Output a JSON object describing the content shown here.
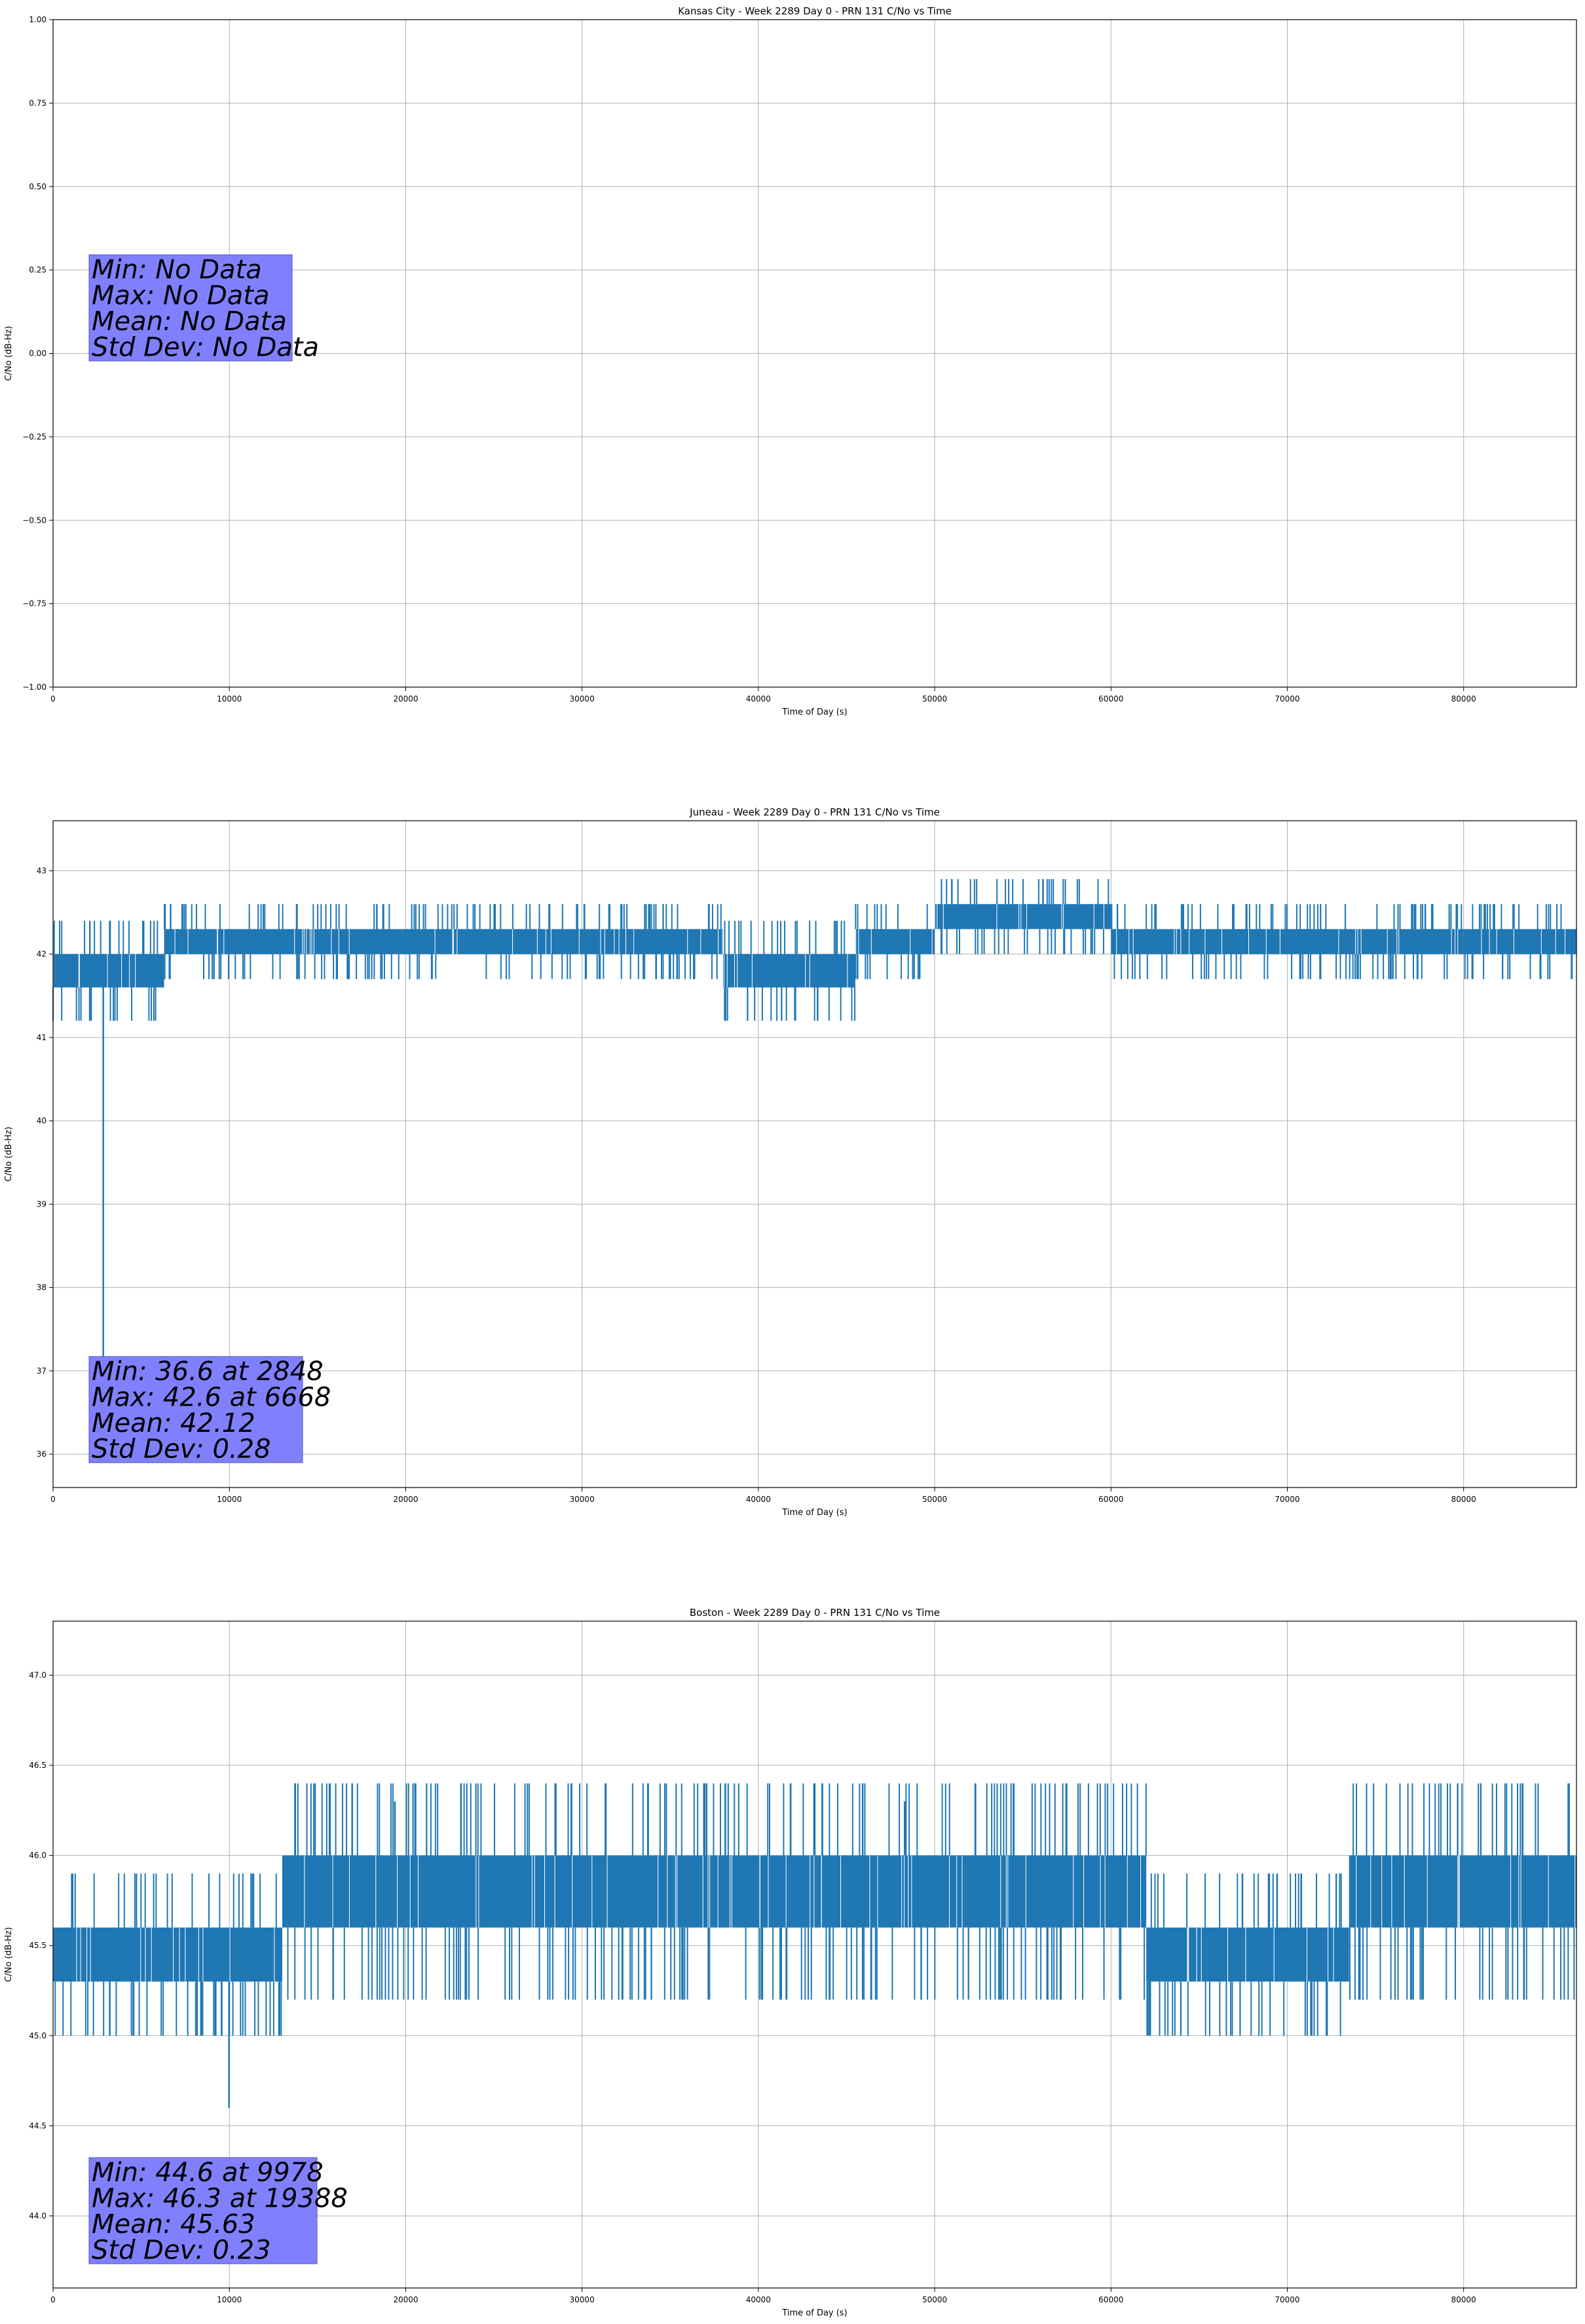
{
  "figure": {
    "accent_color": "#1f77b4",
    "stats_box_color": "#8080ff"
  },
  "chart_data": [
    {
      "type": "line",
      "title": "Kansas City - Week 2289 Day 0 - PRN 131 C/No vs Time",
      "xlabel": "Time of Day (s)",
      "ylabel": "C/No (dB-Hz)",
      "xlim": [
        0,
        86400
      ],
      "ylim": [
        -1.0,
        1.0
      ],
      "grid": true,
      "x_ticks": [
        "0",
        "10000",
        "20000",
        "30000",
        "40000",
        "50000",
        "60000",
        "70000",
        "80000"
      ],
      "y_ticks": [
        "−1.00",
        "−0.75",
        "−0.50",
        "−0.25",
        "0.00",
        "0.25",
        "0.50",
        "0.75",
        "1.00"
      ],
      "stats": [
        "Min: No Data",
        "Max: No Data",
        "Mean: No Data",
        "Std Dev: No Data"
      ],
      "series": []
    },
    {
      "type": "line",
      "title": "Juneau - Week 2289 Day 0 - PRN 131 C/No vs Time",
      "xlabel": "Time of Day (s)",
      "ylabel": "C/No (dB-Hz)",
      "xlim": [
        0,
        86400
      ],
      "ylim": [
        35.6,
        43.6
      ],
      "grid": true,
      "x_ticks": [
        "0",
        "10000",
        "20000",
        "30000",
        "40000",
        "50000",
        "60000",
        "70000",
        "80000"
      ],
      "y_ticks": [
        "36",
        "37",
        "38",
        "39",
        "40",
        "41",
        "42",
        "43"
      ],
      "stats": [
        "Min: 36.6 at 2848",
        "Max: 42.6 at 6668",
        "Mean: 42.12",
        "Std Dev: 0.28"
      ],
      "series": [
        {
          "color": "#1f77b4",
          "band_segments": [
            {
              "x0": 0,
              "x1": 6300,
              "low": 41.6,
              "high": 42.0
            },
            {
              "x0": 6300,
              "x1": 19800,
              "low": 42.0,
              "high": 42.3
            },
            {
              "x0": 19800,
              "x1": 38000,
              "low": 42.0,
              "high": 42.3
            },
            {
              "x0": 38000,
              "x1": 45500,
              "low": 41.6,
              "high": 42.0
            },
            {
              "x0": 45500,
              "x1": 50000,
              "low": 42.0,
              "high": 42.3
            },
            {
              "x0": 50000,
              "x1": 60000,
              "low": 42.3,
              "high": 42.6
            },
            {
              "x0": 60000,
              "x1": 80000,
              "low": 42.0,
              "high": 42.3
            },
            {
              "x0": 80000,
              "x1": 86400,
              "low": 42.0,
              "high": 42.3
            }
          ],
          "spikes": [
            {
              "x": 2848,
              "y0": 42.0,
              "y1": 36.6
            },
            {
              "x": 6668,
              "y0": 42.0,
              "y1": 42.6
            }
          ]
        }
      ]
    },
    {
      "type": "line",
      "title": "Boston - Week 2289 Day 0 - PRN 131 C/No vs Time",
      "xlabel": "Time of Day (s)",
      "ylabel": "C/No (dB-Hz)",
      "xlim": [
        0,
        86400
      ],
      "ylim": [
        43.6,
        47.3
      ],
      "grid": true,
      "x_ticks": [
        "0",
        "10000",
        "20000",
        "30000",
        "40000",
        "50000",
        "60000",
        "70000",
        "80000"
      ],
      "y_ticks": [
        "44.0",
        "44.5",
        "45.0",
        "45.5",
        "46.0",
        "46.5",
        "47.0"
      ],
      "stats": [
        "Min: 44.6 at 9978",
        "Max: 46.3 at 19388",
        "Mean: 45.63",
        "Std Dev: 0.23"
      ],
      "series": [
        {
          "color": "#1f77b4",
          "band_segments": [
            {
              "x0": 0,
              "x1": 13000,
              "low": 45.3,
              "high": 45.6
            },
            {
              "x0": 13000,
              "x1": 48500,
              "low": 45.6,
              "high": 46.0
            },
            {
              "x0": 48500,
              "x1": 62000,
              "low": 45.6,
              "high": 46.0
            },
            {
              "x0": 62000,
              "x1": 73500,
              "low": 45.3,
              "high": 45.6
            },
            {
              "x0": 73500,
              "x1": 86400,
              "low": 45.6,
              "high": 46.0
            }
          ],
          "spikes": [
            {
              "x": 9978,
              "y0": 45.3,
              "y1": 44.6
            },
            {
              "x": 19388,
              "y0": 46.0,
              "y1": 46.3
            },
            {
              "x": 48300,
              "y0": 46.0,
              "y1": 46.3
            }
          ]
        }
      ]
    }
  ]
}
